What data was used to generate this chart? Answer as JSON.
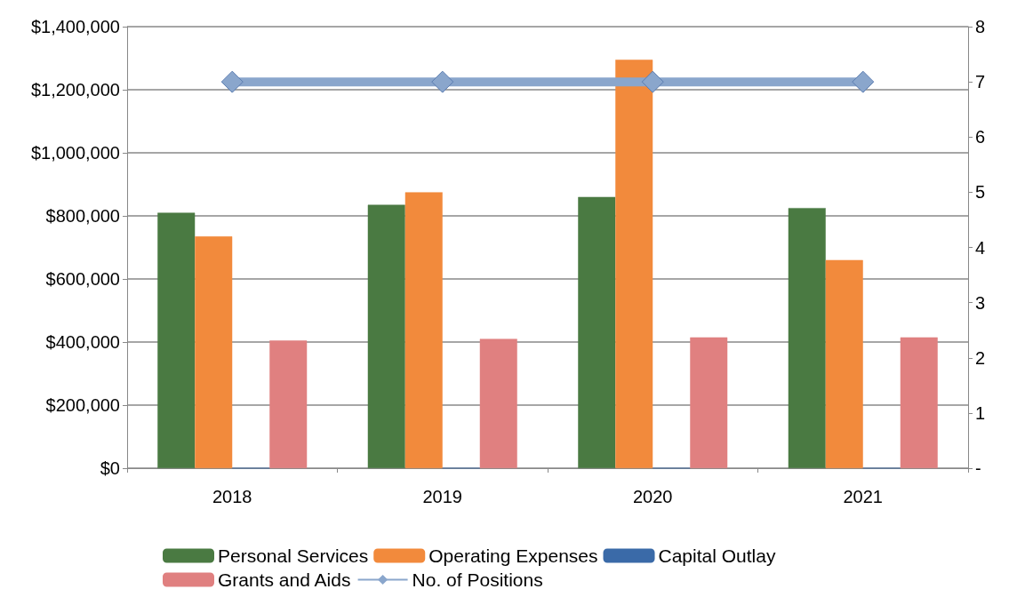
{
  "chart_data": {
    "type": "bar",
    "categories": [
      "2018",
      "2019",
      "2020",
      "2021"
    ],
    "series": [
      {
        "name": "Personal Services",
        "color": "#4a7a42",
        "values": [
          810000,
          835000,
          860000,
          825000
        ]
      },
      {
        "name": "Operating Expenses",
        "color": "#f28a3c",
        "values": [
          735000,
          875000,
          1295000,
          660000
        ]
      },
      {
        "name": "Capital Outlay",
        "color": "#3a6aa8",
        "values": [
          0,
          0,
          0,
          0
        ]
      },
      {
        "name": "Grants and Aids",
        "color": "#e08080",
        "values": [
          405000,
          410000,
          415000,
          415000
        ]
      },
      {
        "name": "No. of Positions",
        "type": "line",
        "axis": "y2",
        "color": "#8aa6cc",
        "marker": "diamond",
        "values": [
          7,
          7,
          7,
          7
        ]
      }
    ],
    "ylim": [
      0,
      1400000
    ],
    "yticks": [
      {
        "value": 0,
        "label": "$0"
      },
      {
        "value": 200000,
        "label": "$200,000"
      },
      {
        "value": 400000,
        "label": "$400,000"
      },
      {
        "value": 600000,
        "label": "$600,000"
      },
      {
        "value": 800000,
        "label": "$800,000"
      },
      {
        "value": 1000000,
        "label": "$1,000,000"
      },
      {
        "value": 1200000,
        "label": "$1,200,000"
      },
      {
        "value": 1400000,
        "label": "$1,400,000"
      }
    ],
    "y2lim": [
      0,
      8
    ],
    "y2ticks": [
      {
        "value": 0,
        "label": "-"
      },
      1,
      2,
      3,
      4,
      5,
      6,
      7,
      8
    ],
    "grid": "y",
    "legend": "bottom"
  }
}
